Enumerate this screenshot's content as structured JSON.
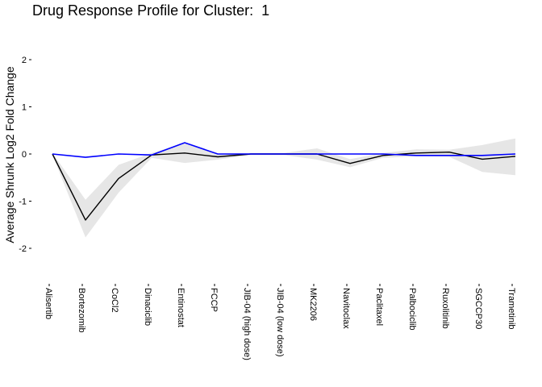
{
  "chart_data": {
    "type": "line",
    "title": "Drug Response Profile for Cluster:  1",
    "xlabel": "",
    "ylabel": "Average Shrunk Log2 Fold Change",
    "categories": [
      "Alisertib",
      "Bortezomib",
      "CoCl2",
      "Dinaciclib",
      "Entinostat",
      "FCCP",
      "JIB-04 (high dose)",
      "JIB-04 (low dose)",
      "MK2206",
      "Navitoclax",
      "Paclitaxel",
      "Palbociclib",
      "Ruxolitinib",
      "SGCCP30",
      "Trametinib"
    ],
    "yticks": [
      2,
      1,
      0,
      -1,
      -2
    ],
    "ylim": [
      -2.7,
      2.55
    ],
    "grid": false,
    "series": [
      {
        "color": "#000000",
        "values": [
          0,
          -1.4,
          -0.52,
          -0.02,
          0.02,
          -0.06,
          0,
          0,
          0,
          -0.2,
          -0.03,
          0.02,
          0.04,
          -0.11,
          -0.05
        ]
      },
      {
        "color": "#0000ff",
        "values": [
          0,
          -0.07,
          0,
          -0.02,
          0.24,
          0,
          0,
          0,
          0,
          0,
          0,
          -0.03,
          -0.03,
          -0.03,
          0
        ]
      }
    ],
    "band": {
      "color": "#e6e6e6",
      "upper": [
        0.02,
        -0.97,
        -0.23,
        0.02,
        0.23,
        0.01,
        0.02,
        0.02,
        0.12,
        -0.11,
        0.02,
        0.1,
        0.09,
        0.19,
        0.33
      ],
      "lower": [
        -0.02,
        -1.77,
        -0.82,
        -0.08,
        -0.19,
        -0.12,
        -0.02,
        -0.02,
        -0.12,
        -0.28,
        -0.08,
        -0.05,
        -0.06,
        -0.38,
        -0.45
      ]
    }
  }
}
